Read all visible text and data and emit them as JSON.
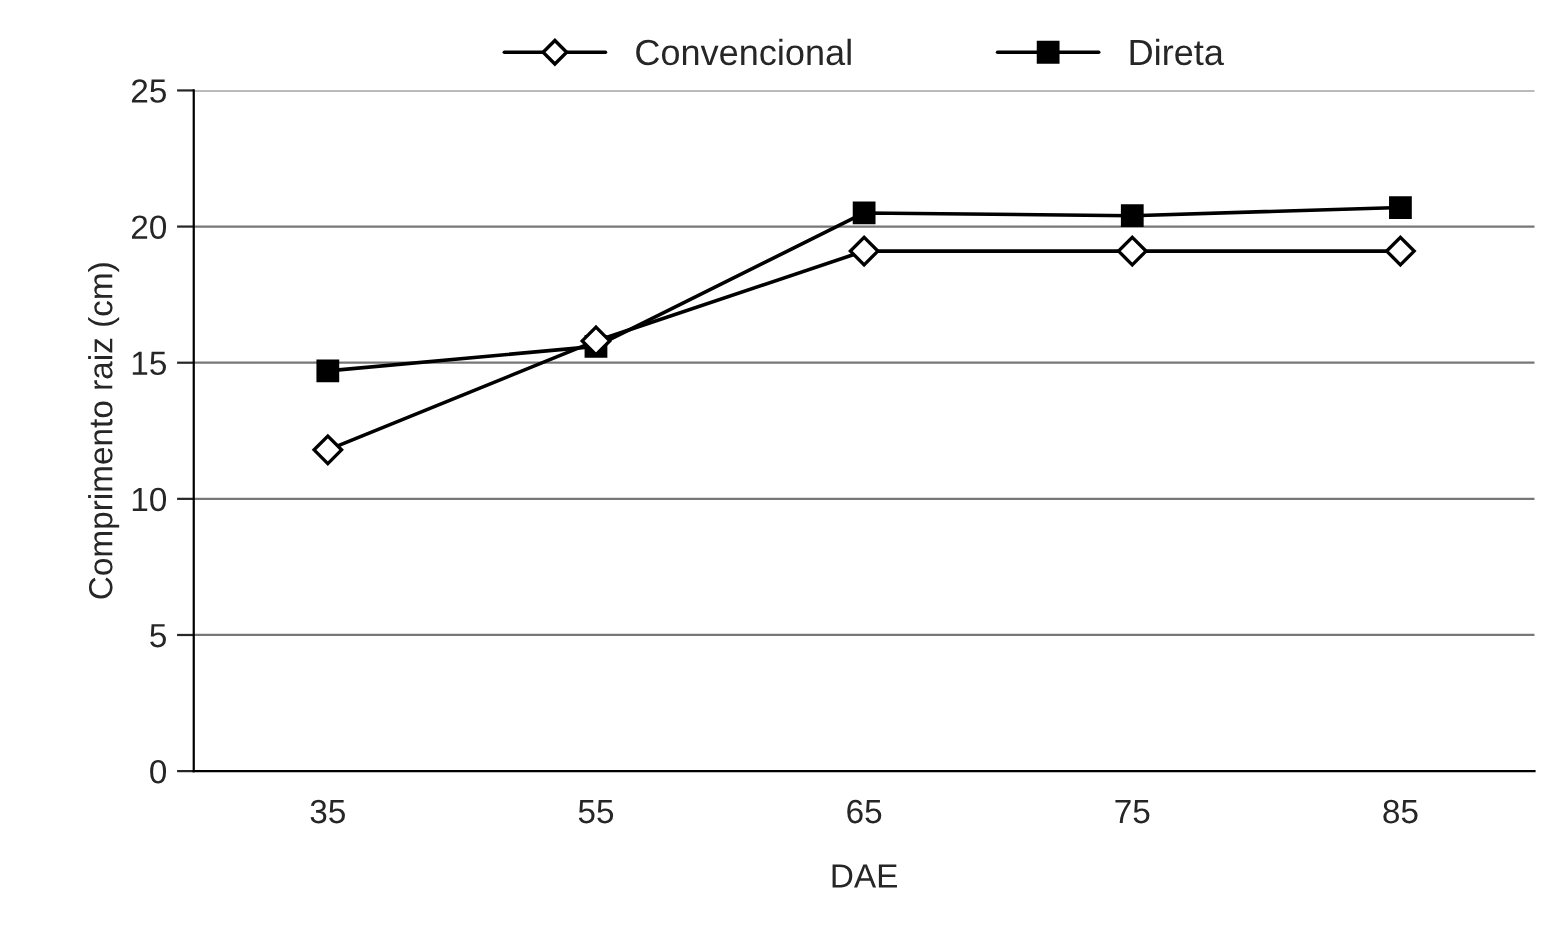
{
  "chart_data": {
    "type": "line",
    "xlabel": "DAE",
    "ylabel": "Comprimento raiz (cm)",
    "categories": [
      "35",
      "55",
      "65",
      "75",
      "85"
    ],
    "series": [
      {
        "name": "Convencional",
        "color": "#000000",
        "marker": "diamond",
        "values": [
          11.8,
          15.8,
          19.1,
          19.1,
          19.1
        ]
      },
      {
        "name": "Direta",
        "color": "#000000",
        "marker": "square",
        "values": [
          14.7,
          15.6,
          20.5,
          20.4,
          20.7
        ]
      }
    ],
    "ylim": [
      0,
      25
    ],
    "yticks": [
      0,
      5,
      10,
      15,
      20,
      25
    ],
    "grid": "y",
    "legend": "top",
    "line_style": "solid"
  }
}
